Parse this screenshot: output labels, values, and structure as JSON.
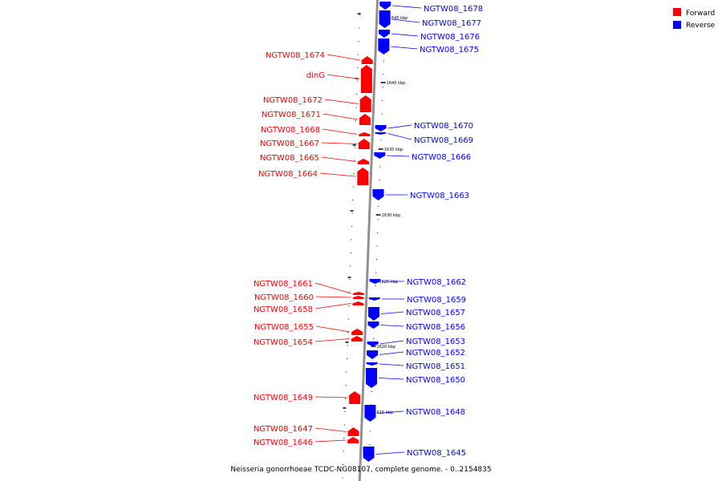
{
  "diagram": {
    "title": "Neisseria gonorrhoeae TCDC-NG08107, complete genome. - 0..2154835",
    "colors": {
      "forward": "#ff0000",
      "reverse": "#0000ff",
      "backbone": "#909090"
    },
    "legend": [
      {
        "label": "Forward",
        "color": "#ff0000"
      },
      {
        "label": "Reverse",
        "color": "#0000ff"
      }
    ],
    "ticks": [
      "1645 kbp",
      "1640 kbp",
      "1635 kbp",
      "1630 kbp",
      "1625 kbp",
      "1620 kbp",
      "1615 kbp"
    ],
    "genes": [
      {
        "name": "NGTW08_1678",
        "strand": "reverse"
      },
      {
        "name": "NGTW08_1677",
        "strand": "reverse"
      },
      {
        "name": "NGTW08_1676",
        "strand": "reverse"
      },
      {
        "name": "NGTW08_1675",
        "strand": "reverse"
      },
      {
        "name": "NGTW08_1674",
        "strand": "forward"
      },
      {
        "name": "dinG",
        "strand": "forward"
      },
      {
        "name": "NGTW08_1672",
        "strand": "forward"
      },
      {
        "name": "NGTW08_1671",
        "strand": "forward"
      },
      {
        "name": "NGTW08_1670",
        "strand": "reverse"
      },
      {
        "name": "NGTW08_1669",
        "strand": "reverse"
      },
      {
        "name": "NGTW08_1668",
        "strand": "forward"
      },
      {
        "name": "NGTW08_1667",
        "strand": "forward"
      },
      {
        "name": "NGTW08_1666",
        "strand": "reverse"
      },
      {
        "name": "NGTW08_1665",
        "strand": "forward"
      },
      {
        "name": "NGTW08_1664",
        "strand": "forward"
      },
      {
        "name": "NGTW08_1663",
        "strand": "reverse"
      },
      {
        "name": "NGTW08_1662",
        "strand": "reverse"
      },
      {
        "name": "NGTW08_1661",
        "strand": "forward"
      },
      {
        "name": "NGTW08_1660",
        "strand": "forward"
      },
      {
        "name": "NGTW08_1659",
        "strand": "reverse"
      },
      {
        "name": "NGTW08_1658",
        "strand": "forward"
      },
      {
        "name": "NGTW08_1657",
        "strand": "reverse"
      },
      {
        "name": "NGTW08_1656",
        "strand": "reverse"
      },
      {
        "name": "NGTW08_1655",
        "strand": "forward"
      },
      {
        "name": "NGTW08_1654",
        "strand": "forward"
      },
      {
        "name": "NGTW08_1653",
        "strand": "reverse"
      },
      {
        "name": "NGTW08_1652",
        "strand": "reverse"
      },
      {
        "name": "NGTW08_1651",
        "strand": "reverse"
      },
      {
        "name": "NGTW08_1650",
        "strand": "reverse"
      },
      {
        "name": "NGTW08_1649",
        "strand": "forward"
      },
      {
        "name": "NGTW08_1648",
        "strand": "reverse"
      },
      {
        "name": "NGTW08_1647",
        "strand": "forward"
      },
      {
        "name": "NGTW08_1646",
        "strand": "forward"
      },
      {
        "name": "NGTW08_1645",
        "strand": "reverse"
      }
    ]
  }
}
